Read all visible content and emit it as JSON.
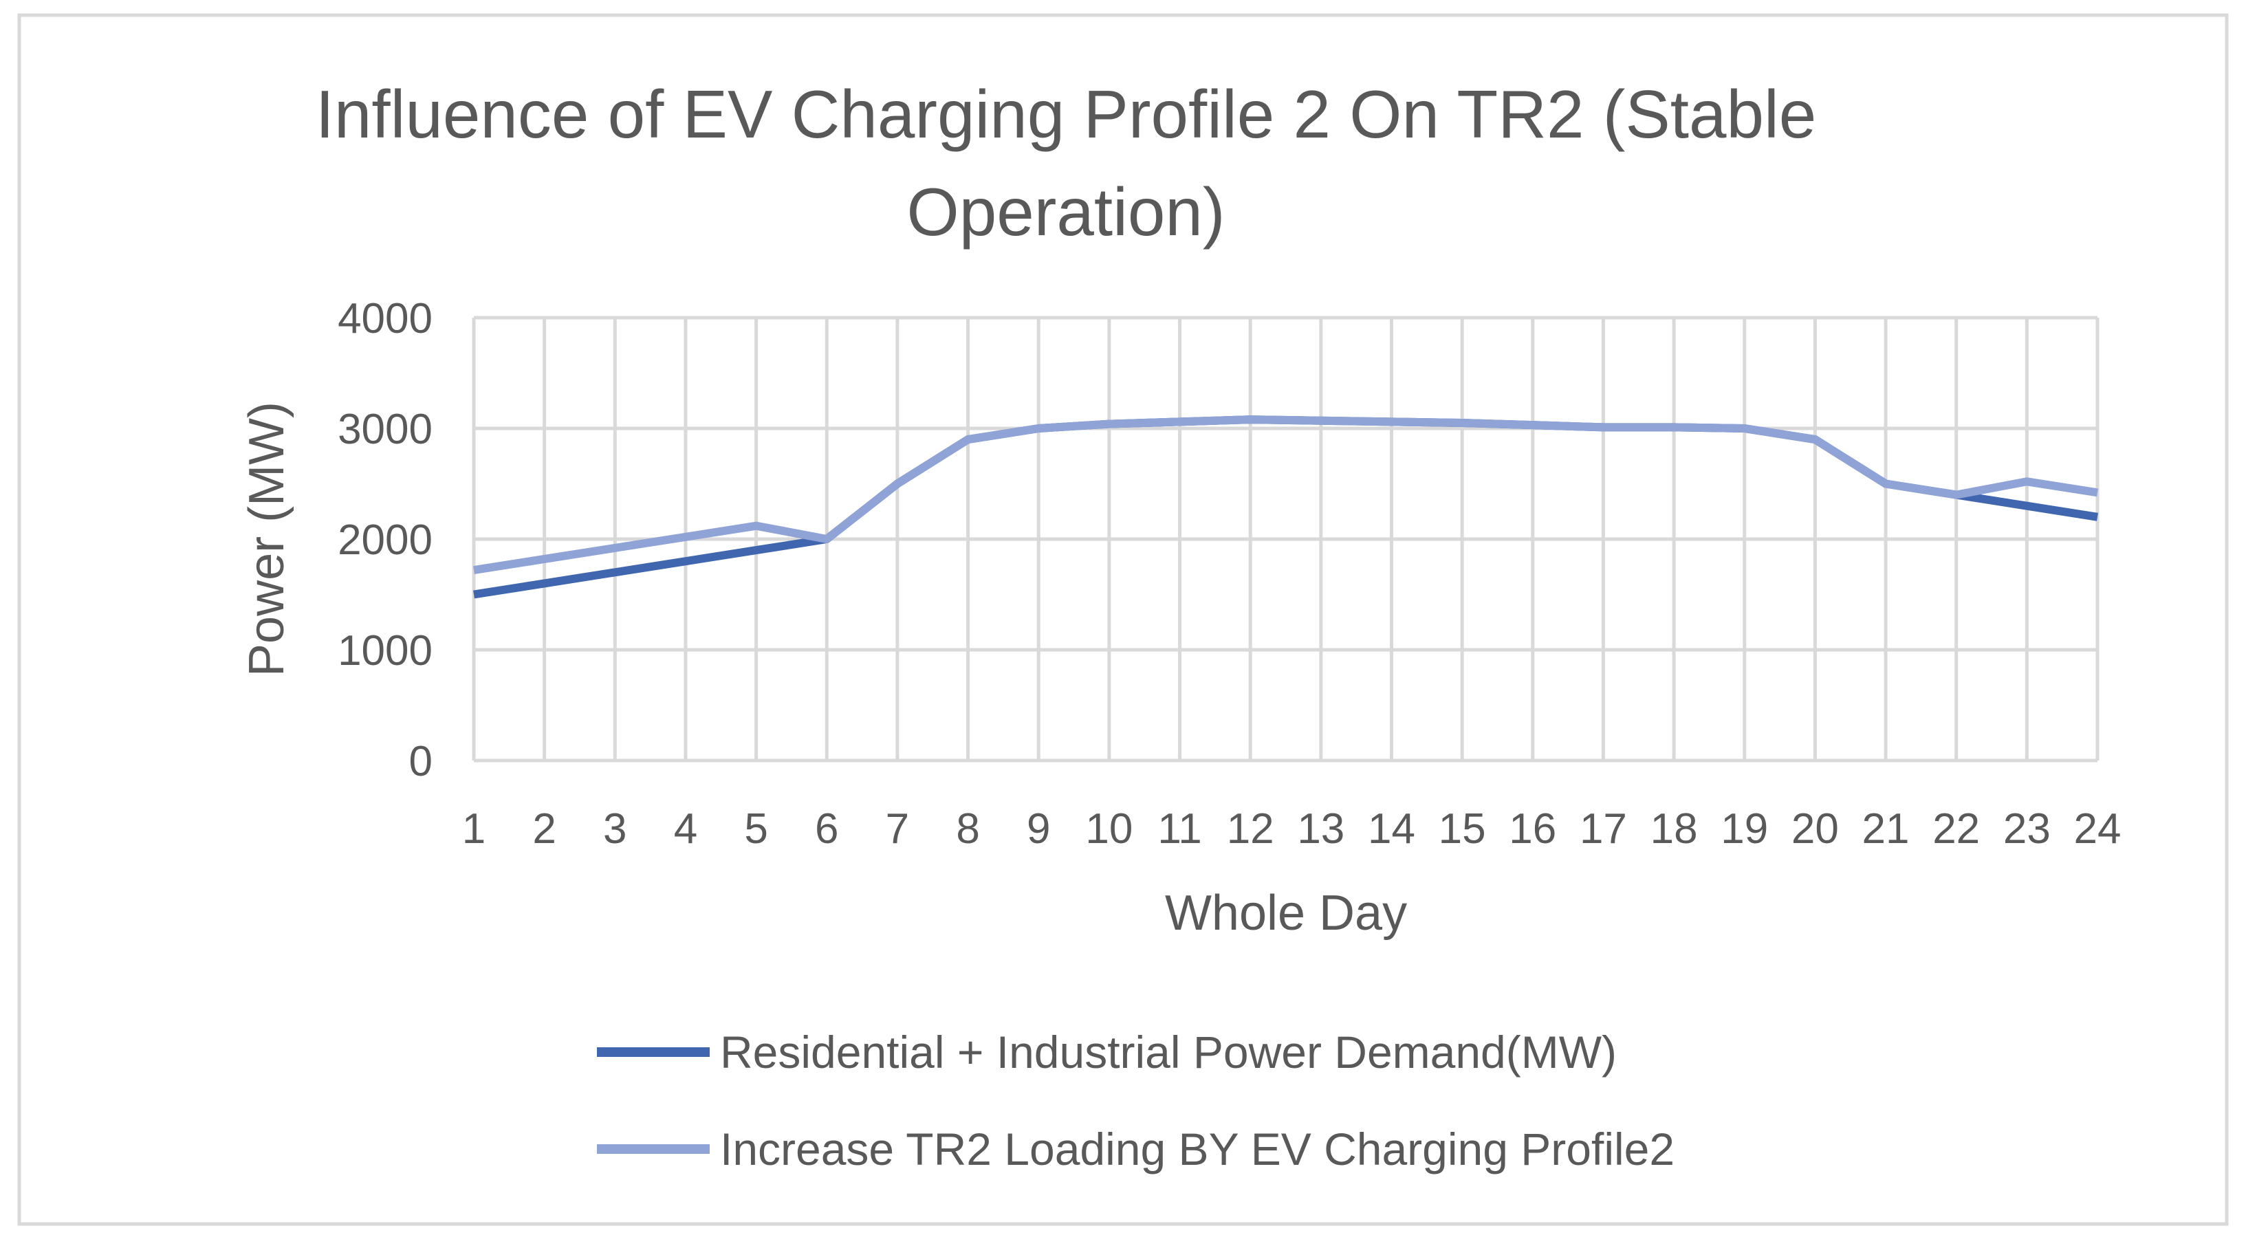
{
  "chart_data": {
    "type": "line",
    "title_lines": [
      "Influence of EV Charging Profile 2 On TR2 (Stable",
      "Operation)"
    ],
    "xlabel": "Whole Day",
    "ylabel": "Power (MW)",
    "categories": [
      "1",
      "2",
      "3",
      "4",
      "5",
      "6",
      "7",
      "8",
      "9",
      "10",
      "11",
      "12",
      "13",
      "14",
      "15",
      "16",
      "17",
      "18",
      "19",
      "20",
      "21",
      "22",
      "23",
      "24"
    ],
    "ylim": [
      0,
      4000
    ],
    "yticks": [
      "0",
      "1000",
      "2000",
      "3000",
      "4000"
    ],
    "grid": true,
    "legend_position": "bottom",
    "series": [
      {
        "name": "Residential + Industrial Power Demand(MW)",
        "color": "#4166b0",
        "values": [
          1500,
          1600,
          1700,
          1800,
          1900,
          2000,
          2500,
          2900,
          3000,
          3040,
          3060,
          3080,
          3070,
          3060,
          3050,
          3030,
          3010,
          3010,
          3000,
          2900,
          2500,
          2400,
          2300,
          2200
        ]
      },
      {
        "name": "Increase TR2 Loading BY EV Charging Profile2",
        "color": "#8fa3d6",
        "values": [
          1720,
          1820,
          1920,
          2020,
          2120,
          2000,
          2500,
          2900,
          3000,
          3040,
          3060,
          3080,
          3070,
          3060,
          3050,
          3030,
          3010,
          3010,
          3000,
          2900,
          2500,
          2400,
          2520,
          2420
        ]
      }
    ]
  }
}
